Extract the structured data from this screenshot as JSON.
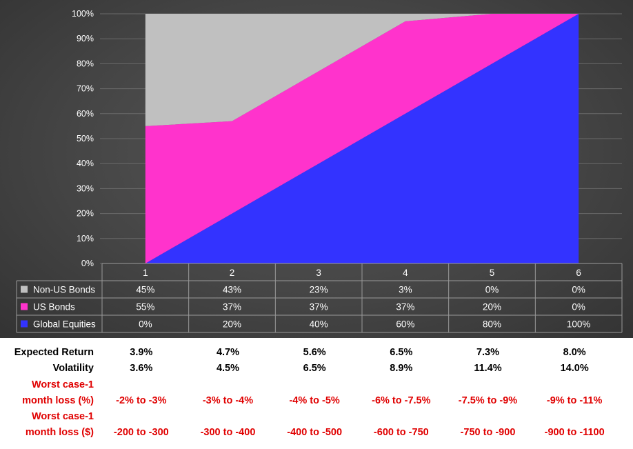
{
  "chart_data": {
    "type": "area",
    "stacked": true,
    "percent_scale": true,
    "categories": [
      "1",
      "2",
      "3",
      "4",
      "5",
      "6"
    ],
    "ylim": [
      0,
      100
    ],
    "y_ticks": [
      "0%",
      "10%",
      "20%",
      "30%",
      "40%",
      "50%",
      "60%",
      "70%",
      "80%",
      "90%",
      "100%"
    ],
    "grid": true,
    "legend_placement": "data-table-left",
    "series": [
      {
        "name": "Global Equities",
        "color": "#3333ff",
        "values": [
          0,
          20,
          40,
          60,
          80,
          100
        ],
        "labels": [
          "0%",
          "20%",
          "40%",
          "60%",
          "80%",
          "100%"
        ]
      },
      {
        "name": "US Bonds",
        "color": "#ff33cc",
        "values": [
          55,
          37,
          37,
          37,
          20,
          0
        ],
        "labels": [
          "55%",
          "37%",
          "37%",
          "37%",
          "20%",
          "0%"
        ]
      },
      {
        "name": "Non-US Bonds",
        "color": "#c0c0c0",
        "values": [
          45,
          43,
          23,
          3,
          0,
          0
        ],
        "labels": [
          "45%",
          "43%",
          "23%",
          "3%",
          "0%",
          "0%"
        ]
      }
    ]
  },
  "stats": [
    {
      "label": "Expected Return",
      "color": "black",
      "values": [
        "3.9%",
        "4.7%",
        "5.6%",
        "6.5%",
        "7.3%",
        "8.0%"
      ]
    },
    {
      "label": "Volatility",
      "color": "black",
      "values": [
        "3.6%",
        "4.5%",
        "6.5%",
        "8.9%",
        "11.4%",
        "14.0%"
      ]
    },
    {
      "label": "Worst case-1",
      "color": "red",
      "values": []
    },
    {
      "label": "month loss (%)",
      "color": "red",
      "values": [
        "-2% to -3%",
        "-3% to -4%",
        "-4% to -5%",
        "-6% to -7.5%",
        "-7.5% to -9%",
        "-9% to -11%"
      ]
    },
    {
      "label": "Worst case-1",
      "color": "red",
      "values": []
    },
    {
      "label": "month loss ($)",
      "color": "red",
      "values": [
        "-200 to -300",
        "-300 to -400",
        "-400 to -500",
        "-600 to -750",
        "-750 to -900",
        "-900 to -1100"
      ]
    }
  ]
}
